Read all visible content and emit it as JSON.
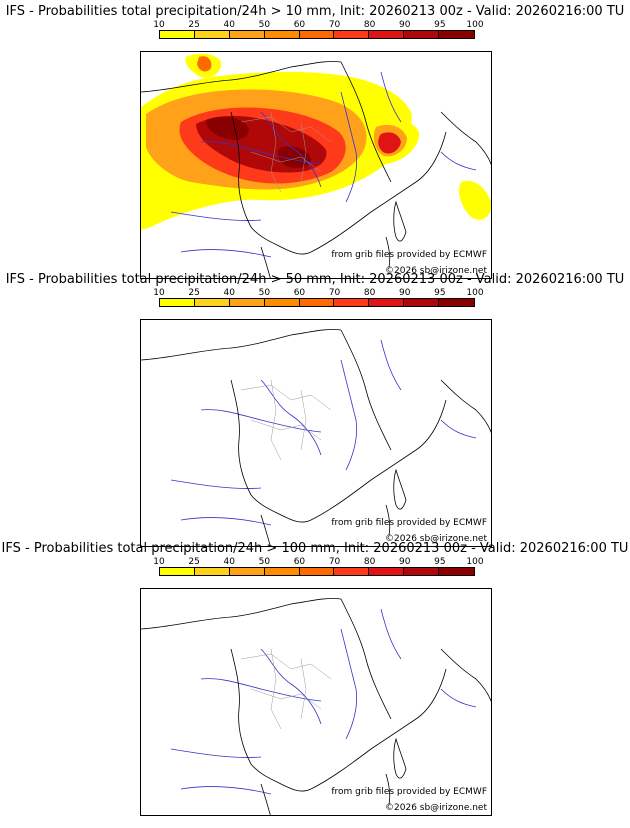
{
  "scale_ticks": [
    "10",
    "25",
    "40",
    "50",
    "60",
    "70",
    "80",
    "90",
    "95",
    "100"
  ],
  "scale_colors": [
    "#ffff00",
    "#ffd21a",
    "#ffa21a",
    "#ff8c00",
    "#ff6a00",
    "#ff3a1a",
    "#e01414",
    "#b00808",
    "#8a0000"
  ],
  "credits": {
    "source": "from grib files provided by ECMWF",
    "copyright": "©2026 sb@irizone.net"
  },
  "panels": [
    {
      "title": "IFS - Probabilities total precipitation/24h > 10 mm, Init: 20260213 00z - Valid: 20260216:00 TU"
    },
    {
      "title": "IFS - Probabilities total precipitation/24h > 50 mm, Init: 20260213 00z - Valid: 20260216:00 TU"
    },
    {
      "title": "IFS - Probabilities total precipitation/24h > 100 mm, Init: 20260213 00z - Valid: 20260216:00 TU"
    }
  ]
}
